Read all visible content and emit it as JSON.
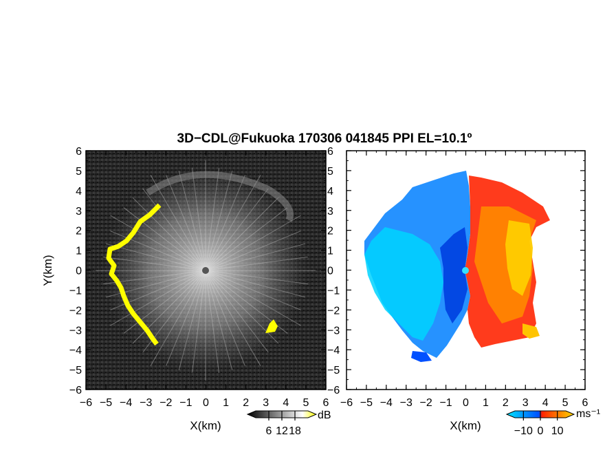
{
  "title": "3D−CDL@Fukuoka 170306 041845 PPI EL=10.1º",
  "chart_data": [
    {
      "type": "heatmap",
      "panel": "left",
      "quantity": "reflectivity / SNR",
      "xlabel": "X(km)",
      "ylabel": "Y(km)",
      "xlim": [
        -6,
        6
      ],
      "ylim": [
        -6,
        6
      ],
      "xticks": [
        -6,
        -5,
        -4,
        -3,
        -2,
        -1,
        0,
        1,
        2,
        3,
        4,
        5,
        6
      ],
      "yticks": [
        -6,
        -5,
        -4,
        -3,
        -2,
        -1,
        0,
        1,
        2,
        3,
        4,
        5,
        6
      ],
      "xtick_labels": [
        "−6",
        "−5",
        "−4",
        "−3",
        "−2",
        "−1",
        "0",
        "1",
        "2",
        "3",
        "4",
        "5",
        "6"
      ],
      "ytick_labels": [
        "−6",
        "−5",
        "−4",
        "−3",
        "−2",
        "−1",
        "0",
        "1",
        "2",
        "3",
        "4",
        "5",
        "6"
      ],
      "colorbar": {
        "label": "dB",
        "ticks": [
          6,
          12,
          18
        ],
        "tick_labels": [
          "6",
          "12",
          "18"
        ],
        "colors": [
          "#000000",
          "#ffffff",
          "#ffff00"
        ]
      },
      "background_color": "#2a2a2a",
      "highlight_color": "#ffff00",
      "radar_range_km": 5
    },
    {
      "type": "heatmap",
      "panel": "right",
      "quantity": "Doppler velocity",
      "xlabel": "X(km)",
      "xlim": [
        -6,
        6
      ],
      "ylim": [
        -6,
        6
      ],
      "xticks": [
        -6,
        -5,
        -4,
        -3,
        -2,
        -1,
        0,
        1,
        2,
        3,
        4,
        5,
        6
      ],
      "yticks": [
        -6,
        -5,
        -4,
        -3,
        -2,
        -1,
        0,
        1,
        2,
        3,
        4,
        5,
        6
      ],
      "xtick_labels": [
        "−6",
        "−5",
        "−4",
        "−3",
        "−2",
        "−1",
        "0",
        "1",
        "2",
        "3",
        "4",
        "5",
        "6"
      ],
      "colorbar": {
        "label": "ms⁻¹",
        "ticks": [
          -10,
          0,
          10
        ],
        "tick_labels": [
          "−10",
          "0",
          "10"
        ],
        "colors": [
          "#00e5ff",
          "#0060ff",
          "#ff2000",
          "#ffd800"
        ]
      },
      "radar_range_km": 5
    }
  ]
}
